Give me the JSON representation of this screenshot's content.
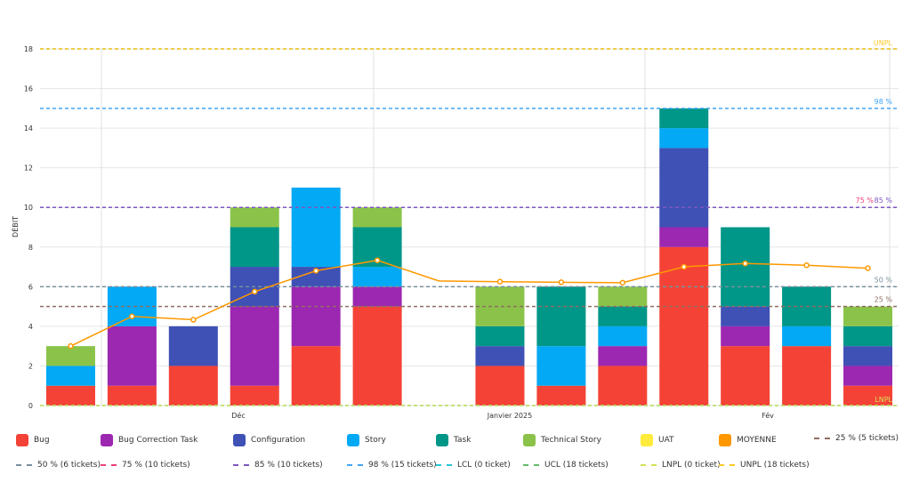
{
  "chart_data": {
    "type": "bar",
    "stacked": true,
    "ylabel": "DÉBIT",
    "ylim": [
      0,
      18
    ],
    "yticks": [
      0,
      2,
      4,
      6,
      8,
      10,
      12,
      14,
      16,
      18
    ],
    "grid": true,
    "legend_position": "bottom",
    "x_group_labels": [
      "Déc",
      "Janvier 2025",
      "Fév"
    ],
    "slots": 14,
    "series": [
      {
        "name": "Bug",
        "color": "#f44336",
        "values": [
          1,
          1,
          2,
          1,
          3,
          5,
          0,
          2,
          1,
          2,
          8,
          3,
          3,
          1
        ]
      },
      {
        "name": "Bug Correction Task",
        "color": "#9c27b0",
        "values": [
          0,
          3,
          0,
          4,
          3,
          1,
          0,
          0,
          0,
          1,
          1,
          1,
          0,
          1
        ]
      },
      {
        "name": "Configuration",
        "color": "#3f51b5",
        "values": [
          0,
          0,
          2,
          2,
          1,
          0,
          0,
          1,
          0,
          0,
          4,
          1,
          0,
          1
        ]
      },
      {
        "name": "Story",
        "color": "#03a9f4",
        "values": [
          1,
          2,
          0,
          0,
          4,
          1,
          0,
          0,
          2,
          1,
          1,
          0,
          1,
          0
        ]
      },
      {
        "name": "Task",
        "color": "#009688",
        "values": [
          0,
          0,
          0,
          2,
          0,
          2,
          0,
          1,
          3,
          1,
          1,
          4,
          2,
          1
        ]
      },
      {
        "name": "Technical Story",
        "color": "#8bc34a",
        "values": [
          1,
          0,
          0,
          1,
          0,
          1,
          0,
          2,
          0,
          1,
          0,
          0,
          0,
          1
        ]
      },
      {
        "name": "UAT",
        "color": "#ffeb3b",
        "values": [
          0,
          0,
          0,
          0,
          0,
          0,
          0,
          0,
          0,
          0,
          0,
          0,
          0,
          0
        ]
      }
    ],
    "line": {
      "name": "MOYENNE",
      "color": "#ff9800",
      "values": [
        3.0,
        4.5,
        4.33,
        5.75,
        6.8,
        7.33,
        6.29,
        6.25,
        6.22,
        6.2,
        7.0,
        7.17,
        7.08,
        6.93
      ]
    },
    "reference_lines": [
      {
        "legend": "25 % (5 tickets)",
        "label": "25 %",
        "value": 5,
        "color": "#8d6e63"
      },
      {
        "legend": "50 % (6 tickets)",
        "label": "50 %",
        "value": 6,
        "color": "#78909c"
      },
      {
        "legend": "75 % (10 tickets)",
        "label": "75 %",
        "value": 10,
        "color": "#ec407a"
      },
      {
        "legend": "85 % (10 tickets)",
        "label": "85 %",
        "value": 10,
        "color": "#7e57c2"
      },
      {
        "legend": "98 % (15 tickets)",
        "label": "98 %",
        "value": 15,
        "color": "#42a5f5"
      },
      {
        "legend": "LCL (0 ticket)",
        "label": "",
        "value": 0,
        "color": "#26c6da"
      },
      {
        "legend": "UCL (18 tickets)",
        "label": "",
        "value": 18,
        "color": "#66bb6a"
      },
      {
        "legend": "LNPL (0 ticket)",
        "label": "LNPL",
        "value": 0,
        "color": "#d4e157"
      },
      {
        "legend": "UNPL (18 tickets)",
        "label": "UNPL",
        "value": 18,
        "color": "#ffca28"
      }
    ]
  }
}
